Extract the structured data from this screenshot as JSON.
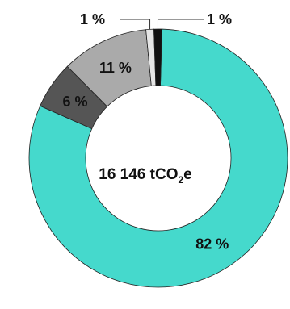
{
  "chart_data": {
    "type": "pie",
    "variant": "donut",
    "center_label": {
      "main": "16 146 tCO",
      "sub": "2",
      "tail": "e"
    },
    "slices": [
      {
        "label": "82 %",
        "value": 82,
        "color": "#45d9cc"
      },
      {
        "label": "6 %",
        "value": 6,
        "color": "#555555"
      },
      {
        "label": "11 %",
        "value": 11,
        "color": "#aaaaaa"
      },
      {
        "label": "1 %",
        "value": 1,
        "color": "#e6e6e6"
      },
      {
        "label": "1 %",
        "value": 1,
        "color": "#111111"
      }
    ]
  }
}
